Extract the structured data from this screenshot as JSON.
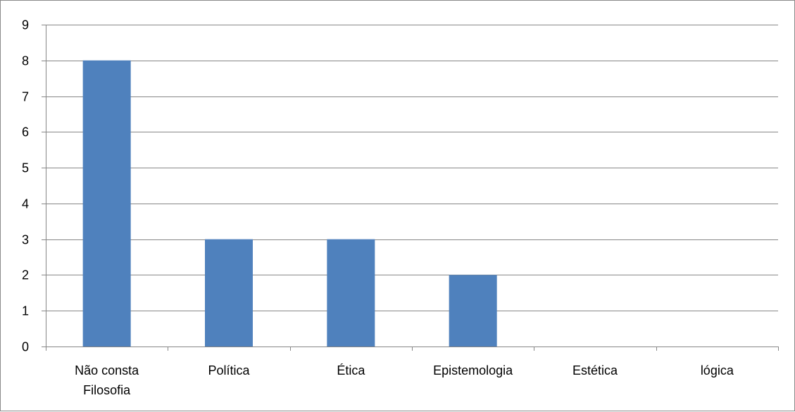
{
  "chart_data": {
    "type": "bar",
    "title": "",
    "xlabel": "",
    "ylabel": "",
    "categories": [
      [
        "Não consta",
        "Filosofia"
      ],
      [
        "Política"
      ],
      [
        "Ética"
      ],
      [
        "Epistemologia"
      ],
      [
        "Estética"
      ],
      [
        "lógica"
      ]
    ],
    "values": [
      8,
      3,
      3,
      2,
      0,
      0
    ],
    "ylim": [
      0,
      9
    ],
    "yticks": [
      "0",
      "1",
      "2",
      "3",
      "4",
      "5",
      "6",
      "7",
      "8",
      "9"
    ],
    "grid": true,
    "legend": "none",
    "colors": {
      "bar": "#4F81BD",
      "grid": "#868686",
      "axis": "#868686"
    }
  }
}
